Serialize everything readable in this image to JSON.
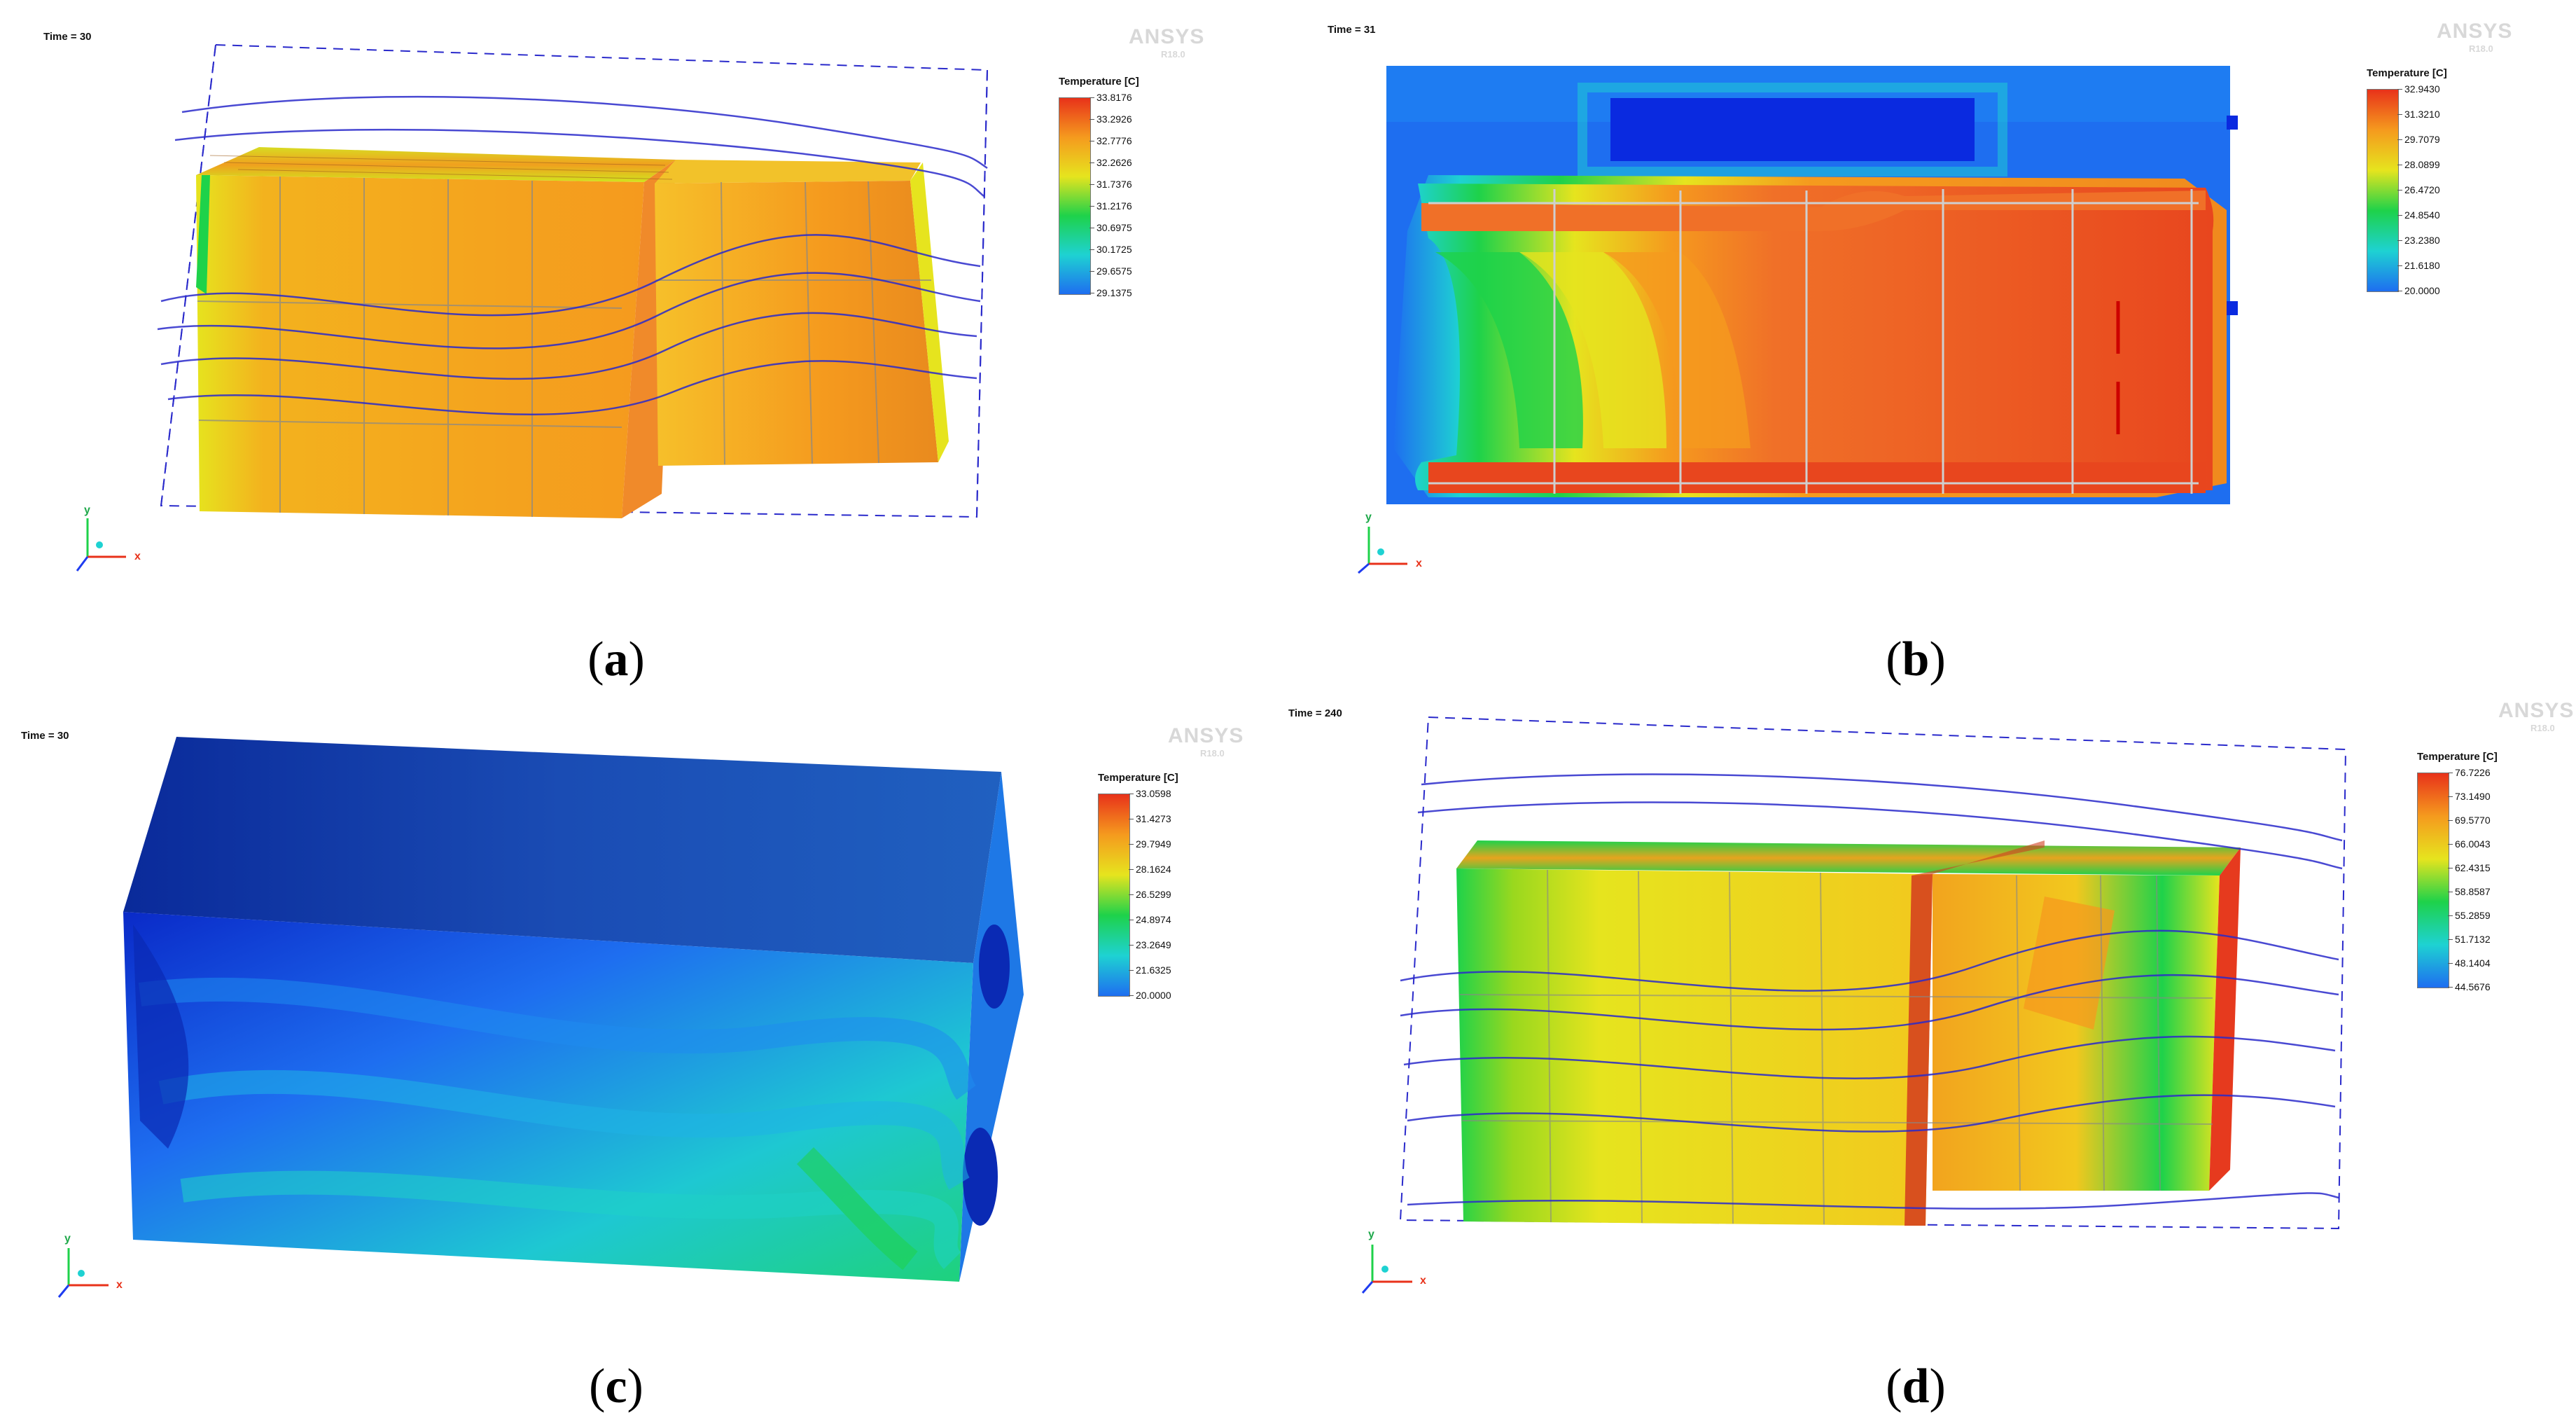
{
  "panels": [
    {
      "id": "a",
      "time": "Time = 30",
      "caption_letter": "a",
      "legend_title": "Temperature [C]",
      "legend_ticks": [
        "33.8176",
        "33.2926",
        "32.7776",
        "32.2626",
        "31.7376",
        "31.2176",
        "30.6975",
        "30.1725",
        "29.6575",
        "29.1375"
      ]
    },
    {
      "id": "b",
      "time": "Time = 31",
      "caption_letter": "b",
      "legend_title": "Temperature [C]",
      "legend_ticks": [
        "32.9430",
        "31.3210",
        "29.7079",
        "28.0899",
        "26.4720",
        "24.8540",
        "23.2380",
        "21.6180",
        "20.0000"
      ]
    },
    {
      "id": "c",
      "time": "Time = 30",
      "caption_letter": "c",
      "legend_title": "Temperature [C]",
      "legend_ticks": [
        "33.0598",
        "31.4273",
        "29.7949",
        "28.1624",
        "26.5299",
        "24.8974",
        "23.2649",
        "21.6325",
        "20.0000"
      ]
    },
    {
      "id": "d",
      "time": "Time = 240",
      "caption_letter": "d",
      "legend_title": "Temperature [C]",
      "legend_ticks": [
        "76.7226",
        "73.1490",
        "69.5770",
        "66.0043",
        "62.4315",
        "58.8587",
        "55.2859",
        "51.7132",
        "48.1404",
        "44.5676"
      ]
    }
  ],
  "watermark": {
    "brand": "ANSYS",
    "version": "R18.0"
  },
  "axes": {
    "x": "x",
    "y": "y"
  },
  "colors": {
    "red": "#e8321a",
    "orange": "#f59a1e",
    "yellow": "#e6e41e",
    "green": "#1ed24a",
    "cyan": "#1ed2d2",
    "blue": "#1e6ef0",
    "navy": "#0a1e8c",
    "streamline": "#2a2acb"
  }
}
